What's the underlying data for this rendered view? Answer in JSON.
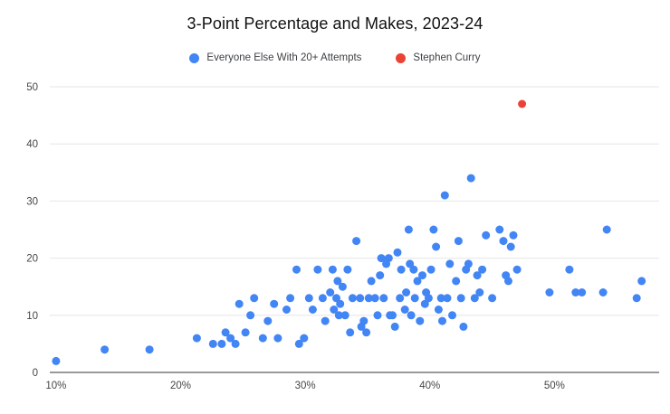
{
  "title": "3-Point Percentage and Makes, 2023-24",
  "legend": [
    {
      "label": "Everyone Else With 20+ Attempts",
      "color": "#4285f4"
    },
    {
      "label": "Stephen Curry",
      "color": "#ea4335"
    }
  ],
  "colors": {
    "blue_series": "#4285f4",
    "red_series": "#ea4335",
    "gridline": "#e6e6e6",
    "axis_line": "#333333",
    "background": "#ffffff"
  },
  "chart_data": {
    "type": "scatter",
    "title": "3-Point Percentage and Makes, 2023-24",
    "xlabel": "",
    "ylabel": "",
    "x_ticks": [
      "10%",
      "20%",
      "30%",
      "40%",
      "50%"
    ],
    "x_tick_values": [
      10,
      20,
      30,
      40,
      50
    ],
    "y_ticks": [
      0,
      10,
      20,
      30,
      40,
      50
    ],
    "xlim": [
      9.5,
      58.4
    ],
    "ylim": [
      0,
      50
    ],
    "grid": "horizontal",
    "legend_position": "top",
    "series": [
      {
        "name": "Everyone Else With 20+ Attempts",
        "color": "#4285f4",
        "points": [
          [
            10.0,
            2
          ],
          [
            13.9,
            4
          ],
          [
            17.5,
            4
          ],
          [
            21.3,
            6
          ],
          [
            22.6,
            5
          ],
          [
            23.3,
            5
          ],
          [
            23.6,
            7
          ],
          [
            24.0,
            6
          ],
          [
            24.4,
            5
          ],
          [
            24.7,
            12
          ],
          [
            25.2,
            7
          ],
          [
            25.6,
            10
          ],
          [
            25.9,
            13
          ],
          [
            26.6,
            6
          ],
          [
            27.0,
            9
          ],
          [
            27.5,
            12
          ],
          [
            27.8,
            6
          ],
          [
            28.5,
            11
          ],
          [
            28.8,
            13
          ],
          [
            29.3,
            18
          ],
          [
            29.5,
            5
          ],
          [
            29.9,
            6
          ],
          [
            30.3,
            13
          ],
          [
            30.6,
            11
          ],
          [
            31.0,
            18
          ],
          [
            31.4,
            13
          ],
          [
            31.6,
            9
          ],
          [
            32.0,
            14
          ],
          [
            32.2,
            18
          ],
          [
            32.3,
            11
          ],
          [
            32.5,
            13
          ],
          [
            32.6,
            16
          ],
          [
            32.7,
            10
          ],
          [
            32.8,
            12
          ],
          [
            33.0,
            15
          ],
          [
            33.2,
            10
          ],
          [
            33.4,
            18
          ],
          [
            33.6,
            7
          ],
          [
            33.8,
            13
          ],
          [
            34.1,
            23
          ],
          [
            34.4,
            13
          ],
          [
            34.5,
            8
          ],
          [
            34.7,
            9
          ],
          [
            34.9,
            7
          ],
          [
            35.1,
            13
          ],
          [
            35.3,
            16
          ],
          [
            35.6,
            13
          ],
          [
            35.8,
            10
          ],
          [
            36.0,
            17
          ],
          [
            36.1,
            20
          ],
          [
            36.3,
            13
          ],
          [
            36.5,
            19
          ],
          [
            36.7,
            20
          ],
          [
            36.8,
            10
          ],
          [
            37.0,
            10
          ],
          [
            37.2,
            8
          ],
          [
            37.4,
            21
          ],
          [
            37.6,
            13
          ],
          [
            37.7,
            18
          ],
          [
            38.0,
            11
          ],
          [
            38.1,
            14
          ],
          [
            38.3,
            25
          ],
          [
            38.4,
            19
          ],
          [
            38.5,
            10
          ],
          [
            38.7,
            18
          ],
          [
            38.8,
            13
          ],
          [
            39.0,
            16
          ],
          [
            39.2,
            9
          ],
          [
            39.4,
            17
          ],
          [
            39.6,
            12
          ],
          [
            39.7,
            14
          ],
          [
            39.9,
            13
          ],
          [
            40.1,
            18
          ],
          [
            40.3,
            25
          ],
          [
            40.5,
            22
          ],
          [
            40.7,
            11
          ],
          [
            40.9,
            13
          ],
          [
            41.0,
            9
          ],
          [
            41.2,
            31
          ],
          [
            41.4,
            13
          ],
          [
            41.6,
            19
          ],
          [
            41.8,
            10
          ],
          [
            42.1,
            16
          ],
          [
            42.3,
            23
          ],
          [
            42.5,
            13
          ],
          [
            42.7,
            8
          ],
          [
            42.9,
            18
          ],
          [
            43.1,
            19
          ],
          [
            43.3,
            34
          ],
          [
            43.6,
            13
          ],
          [
            43.8,
            17
          ],
          [
            44.0,
            14
          ],
          [
            44.2,
            18
          ],
          [
            44.5,
            24
          ],
          [
            45.0,
            13
          ],
          [
            45.6,
            25
          ],
          [
            45.9,
            23
          ],
          [
            46.1,
            17
          ],
          [
            46.3,
            16
          ],
          [
            46.5,
            22
          ],
          [
            46.7,
            24
          ],
          [
            47.0,
            18
          ],
          [
            49.6,
            14
          ],
          [
            51.2,
            18
          ],
          [
            51.7,
            14
          ],
          [
            52.2,
            14
          ],
          [
            53.9,
            14
          ],
          [
            54.2,
            25
          ],
          [
            56.6,
            13
          ],
          [
            57.0,
            16
          ]
        ]
      },
      {
        "name": "Stephen Curry",
        "color": "#ea4335",
        "points": [
          [
            47.4,
            47
          ]
        ]
      }
    ]
  }
}
